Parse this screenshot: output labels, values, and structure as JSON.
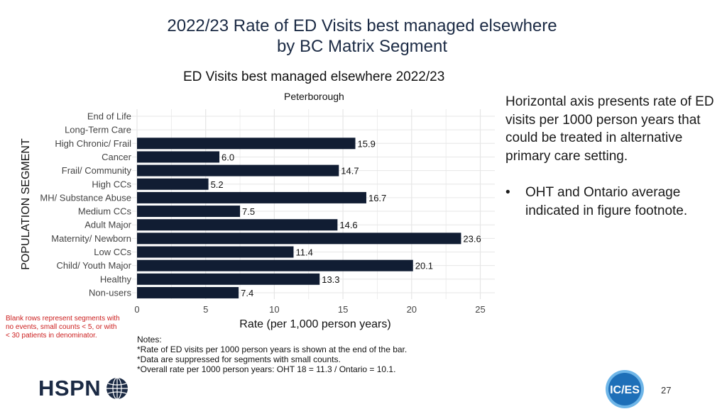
{
  "slide": {
    "title_line1": "2022/23 Rate of ED Visits best managed elsewhere",
    "title_line2": "by BC Matrix Segment",
    "page_number": "27"
  },
  "side_panel": {
    "description": "Horizontal axis presents rate of ED visits per 1000 person years that could be treated in alternative primary care setting.",
    "bullet_symbol": "•",
    "bullet": "OHT and Ontario average indicated in figure footnote."
  },
  "blank_rows_note": "Blank rows represent segments with no events, small counts < 5, or with < 30 patients in denominator.",
  "notes": {
    "heading": "Notes:",
    "lines": [
      "*Rate of ED visits per 1000 person years is shown at the end of the bar.",
      "*Data are suppressed for segments with small counts.",
      "*Overall rate per 1000 person years: OHT 18 = 11.3 / Ontario = 10.1."
    ]
  },
  "logos": {
    "hspn_text": "HSPN",
    "ices_text": "IC/ES"
  },
  "colors": {
    "bar": "#111d33",
    "grid": "#e6e6e6",
    "title": "#1b2a44",
    "note_red": "#cc1f1f",
    "ices_blue": "#1e6fb8"
  },
  "chart_data": {
    "type": "bar",
    "orientation": "horizontal",
    "title": "ED Visits best managed elsewhere 2022/23",
    "subtitle": "Peterborough",
    "xlabel": "Rate (per 1,000 person years)",
    "ylabel": "POPULATION SEGMENT",
    "xlim": [
      0,
      26
    ],
    "xticks": [
      0,
      5,
      10,
      15,
      20,
      25
    ],
    "grid": true,
    "categories": [
      "End of Life",
      "Long-Term Care",
      "High Chronic/ Frail",
      "Cancer",
      "Frail/ Community",
      "High CCs",
      "MH/ Substance Abuse",
      "Medium CCs",
      "Adult Major",
      "Maternity/ Newborn",
      "Low CCs",
      "Child/ Youth Major",
      "Healthy",
      "Non-users"
    ],
    "values": [
      null,
      null,
      15.9,
      6.0,
      14.7,
      5.2,
      16.7,
      7.5,
      14.6,
      23.6,
      11.4,
      20.1,
      13.3,
      7.4
    ],
    "value_labels": [
      "",
      "",
      "15.9",
      "6.0",
      "14.7",
      "5.2",
      "16.7",
      "7.5",
      "14.6",
      "23.6",
      "11.4",
      "20.1",
      "13.3",
      "7.4"
    ]
  }
}
